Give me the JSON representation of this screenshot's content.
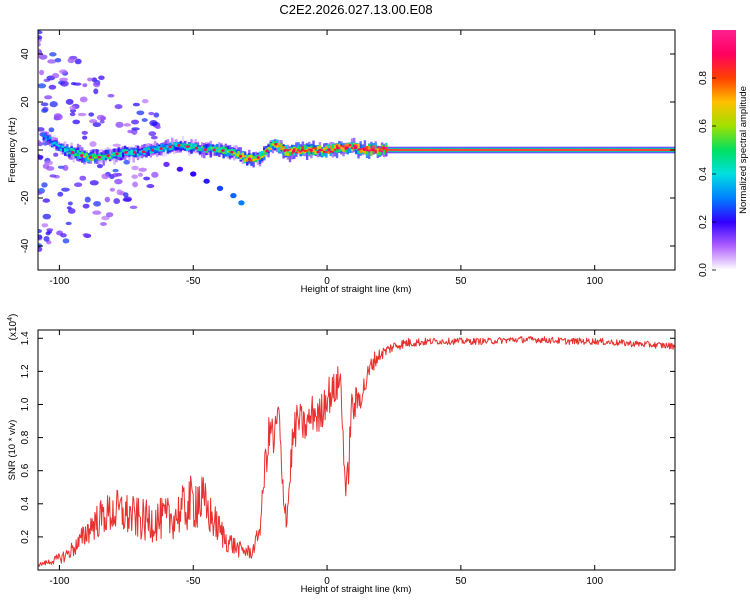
{
  "title": "C2E2.2026.027.13.00.E08",
  "chart_data": [
    {
      "type": "heatmap",
      "xlabel": "Height of straight line (km)",
      "ylabel": "Frequency (Hz)",
      "xlim": [
        -108,
        130
      ],
      "ylim": [
        -50,
        50
      ],
      "x_ticks": [
        "-100",
        "-50",
        "0",
        "50",
        "100"
      ],
      "x_tick_values": [
        -100,
        -50,
        0,
        50,
        100
      ],
      "y_ticks": [
        "-40",
        "-20",
        "0",
        "20",
        "40"
      ],
      "y_tick_values": [
        -40,
        -20,
        0,
        20,
        40
      ],
      "colorbar": {
        "label": "Normalized spectral amplitude",
        "range": [
          0,
          1
        ],
        "ticks": [
          "0.0",
          "0.2",
          "0.4",
          "0.6",
          "0.8"
        ],
        "tick_values": [
          0.0,
          0.2,
          0.4,
          0.6,
          0.8
        ],
        "colormap": [
          "#ffffff",
          "#b060ff",
          "#3000ff",
          "#0080ff",
          "#00e0e0",
          "#00e060",
          "#a0e000",
          "#ffc000",
          "#ff4000",
          "#ff0060",
          "#ff2090"
        ]
      },
      "ridge": {
        "x": [
          -106,
          -100,
          -95,
          -90,
          -85,
          -80,
          -75,
          -70,
          -65,
          -60,
          -55,
          -50,
          -45,
          -40,
          -35,
          -30,
          -25,
          -22,
          -20,
          -17,
          -15,
          -10,
          -5,
          0,
          5,
          10,
          15,
          20,
          30,
          60,
          90,
          130
        ],
        "y": [
          6,
          1,
          -1,
          -3,
          -3,
          -2,
          -1,
          -1,
          0,
          1,
          2,
          1,
          0,
          0,
          -1,
          -4,
          -3,
          0,
          3,
          1,
          -1,
          0,
          0,
          0,
          1,
          1,
          0,
          0,
          0,
          0,
          0,
          0
        ],
        "amplitude": [
          0.3,
          0.4,
          0.5,
          0.65,
          0.55,
          0.5,
          0.45,
          0.4,
          0.42,
          0.45,
          0.45,
          0.5,
          0.5,
          0.55,
          0.6,
          0.8,
          0.65,
          0.6,
          0.7,
          0.7,
          0.8,
          0.85,
          0.85,
          0.85,
          0.9,
          0.9,
          0.95,
          0.95,
          0.95,
          0.95,
          0.95,
          0.95
        ]
      },
      "secondary_branch": {
        "x": [
          -60,
          -55,
          -50,
          -45,
          -40,
          -35,
          -32
        ],
        "y": [
          -6,
          -8,
          -10,
          -13,
          -16,
          -19,
          -22
        ],
        "amplitude": [
          0.15,
          0.18,
          0.2,
          0.22,
          0.25,
          0.28,
          0.3
        ]
      }
    },
    {
      "type": "line",
      "xlabel": "Height of straight line (km)",
      "ylabel": "SNR (10 * v/v)",
      "y_multiplier": "(x10",
      "y_multiplier_exp": "4",
      "y_multiplier_close": ")",
      "xlim": [
        -108,
        130
      ],
      "ylim": [
        0,
        1.45
      ],
      "x_ticks": [
        "-100",
        "-50",
        "0",
        "50",
        "100"
      ],
      "x_tick_values": [
        -100,
        -50,
        0,
        50,
        100
      ],
      "y_ticks": [
        "0.2",
        "0.4",
        "0.6",
        "0.8",
        "1.0",
        "1.2",
        "1.4"
      ],
      "y_tick_values": [
        0.2,
        0.4,
        0.6,
        0.8,
        1.0,
        1.2,
        1.4
      ],
      "color": "#e8312f",
      "series": [
        {
          "x": [
            -108,
            -103,
            -98,
            -93,
            -88,
            -83,
            -78,
            -73,
            -68,
            -63,
            -58,
            -53,
            -48,
            -43,
            -38,
            -33,
            -28,
            -25,
            -23,
            -21,
            -20,
            -18,
            -17,
            -15,
            -13,
            -11,
            -8,
            -5,
            -3,
            0,
            2,
            5,
            7,
            8,
            9,
            11,
            14,
            17,
            20,
            25,
            30,
            40,
            50,
            60,
            70,
            80,
            90,
            100,
            110,
            120,
            130
          ],
          "values": [
            0.03,
            0.05,
            0.08,
            0.15,
            0.26,
            0.32,
            0.34,
            0.31,
            0.28,
            0.29,
            0.3,
            0.36,
            0.42,
            0.3,
            0.18,
            0.12,
            0.1,
            0.25,
            0.65,
            0.85,
            0.75,
            0.95,
            0.55,
            0.3,
            0.75,
            0.9,
            0.85,
            0.95,
            0.9,
            1.05,
            1.05,
            1.15,
            0.45,
            0.6,
            0.95,
            1.0,
            1.1,
            1.25,
            1.3,
            1.35,
            1.37,
            1.38,
            1.38,
            1.38,
            1.39,
            1.39,
            1.38,
            1.38,
            1.37,
            1.36,
            1.35
          ],
          "noise": [
            0.01,
            0.02,
            0.04,
            0.06,
            0.1,
            0.12,
            0.14,
            0.13,
            0.13,
            0.13,
            0.13,
            0.15,
            0.2,
            0.12,
            0.08,
            0.05,
            0.04,
            0.05,
            0.12,
            0.15,
            0.12,
            0.12,
            0.12,
            0.08,
            0.12,
            0.12,
            0.1,
            0.12,
            0.12,
            0.12,
            0.12,
            0.1,
            0.08,
            0.1,
            0.12,
            0.1,
            0.08,
            0.06,
            0.04,
            0.03,
            0.03,
            0.02,
            0.02,
            0.02,
            0.02,
            0.02,
            0.02,
            0.02,
            0.02,
            0.02,
            0.02
          ]
        }
      ]
    }
  ]
}
